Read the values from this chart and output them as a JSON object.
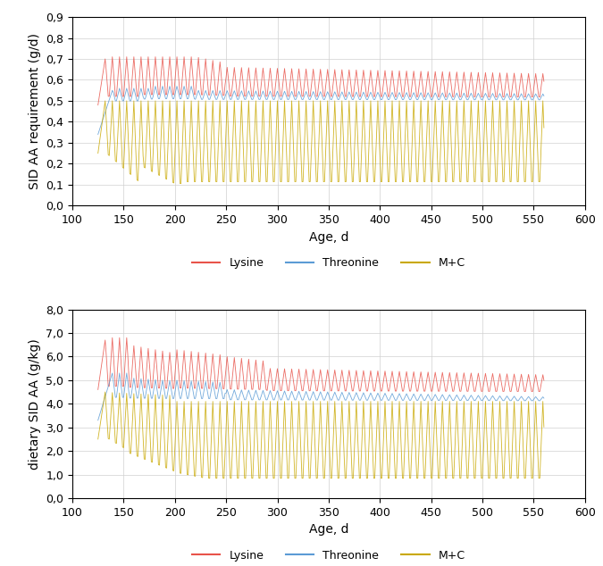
{
  "upper_ylabel": "SID AA requirement (g/d)",
  "lower_ylabel": "dietary SID AA (g/kg)",
  "xlabel": "Age, d",
  "xlim": [
    100,
    600
  ],
  "upper_ylim": [
    0.0,
    0.9
  ],
  "lower_ylim": [
    0.0,
    8.0
  ],
  "upper_yticks": [
    0.0,
    0.1,
    0.2,
    0.3,
    0.4,
    0.5,
    0.6,
    0.7,
    0.8,
    0.9
  ],
  "lower_yticks": [
    0.0,
    1.0,
    2.0,
    3.0,
    4.0,
    5.0,
    6.0,
    7.0,
    8.0
  ],
  "xticks": [
    100,
    150,
    200,
    250,
    300,
    350,
    400,
    450,
    500,
    550,
    600
  ],
  "color_lysine": "#e8534a",
  "color_threonine": "#5b9bd5",
  "color_mc": "#c9a800",
  "legend_labels": [
    "Lysine",
    "Threonine",
    "M+C"
  ],
  "bg_color": "#ffffff",
  "grid_color": "#d0d0d0",
  "tick_label_size": 9,
  "axis_label_size": 10,
  "legend_fontsize": 9
}
